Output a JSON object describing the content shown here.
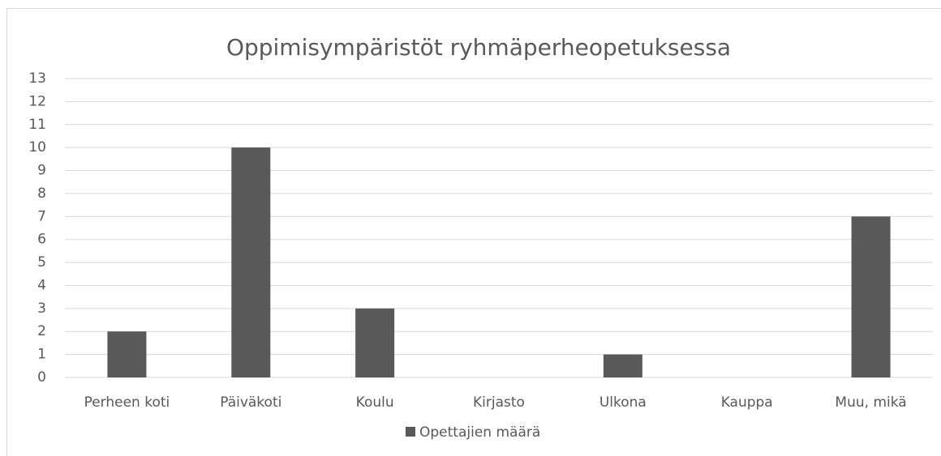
{
  "chart_data": {
    "type": "bar",
    "title": "Oppimisympäristöt ryhmäperheopetuksessa",
    "categories": [
      "Perheen koti",
      "Päiväkoti",
      "Koulu",
      "Kirjasto",
      "Ulkona",
      "Kauppa",
      "Muu, mikä"
    ],
    "series": [
      {
        "name": "Opettajien määrä",
        "color": "#595959",
        "values": [
          2,
          10,
          3,
          0,
          1,
          0,
          7
        ]
      }
    ],
    "ylim": [
      0,
      13
    ],
    "yticks": [
      0,
      1,
      2,
      3,
      4,
      5,
      6,
      7,
      8,
      9,
      10,
      11,
      12,
      13
    ],
    "grid": true,
    "legend": "bottom"
  }
}
